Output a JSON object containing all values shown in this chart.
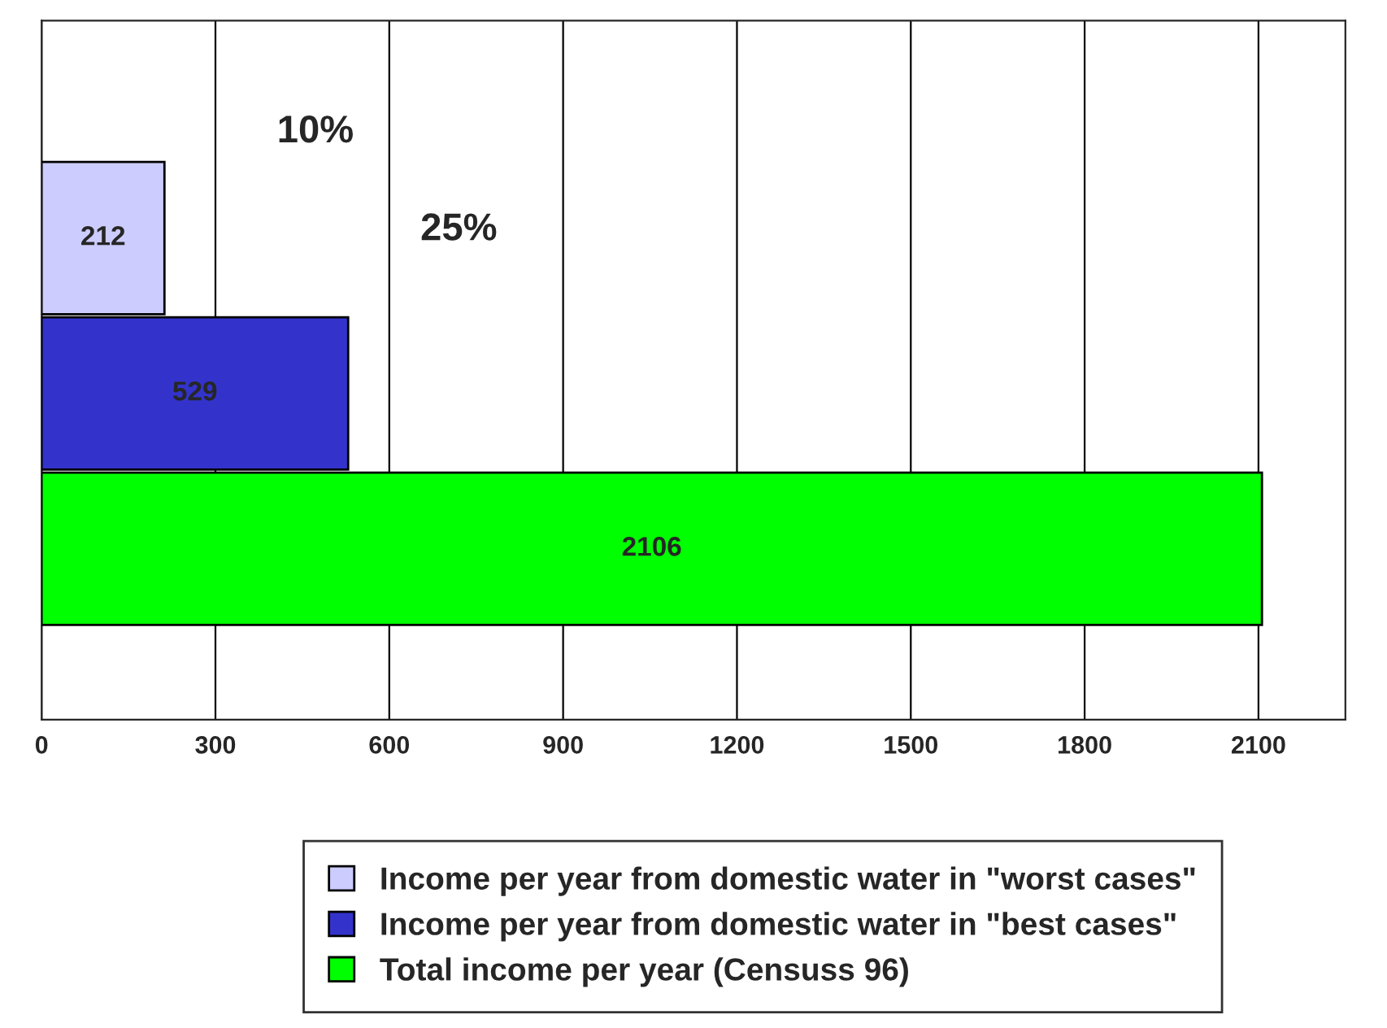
{
  "chart_data": {
    "type": "bar",
    "orientation": "horizontal",
    "categories": [
      null,
      null,
      null
    ],
    "series": [
      {
        "name": "Income per year from domestic water in \"worst cases\"",
        "color": "#ccccff",
        "values": [
          212,
          null,
          null
        ]
      },
      {
        "name": "Income per year from domestic water in \"best cases\"",
        "color": "#3333cc",
        "values": [
          null,
          529,
          null
        ]
      },
      {
        "name": "Total income per year (Censuss 96)",
        "color": "#00ff00",
        "values": [
          null,
          null,
          2106
        ]
      }
    ],
    "xlim": [
      0,
      2250
    ],
    "xticks": [
      0,
      300,
      600,
      900,
      1200,
      1500,
      1800,
      2100
    ],
    "tick_labels": "x",
    "grid": "x",
    "legend": "bottom",
    "data_labels": true,
    "annotations": [
      "10%",
      "25%"
    ]
  }
}
